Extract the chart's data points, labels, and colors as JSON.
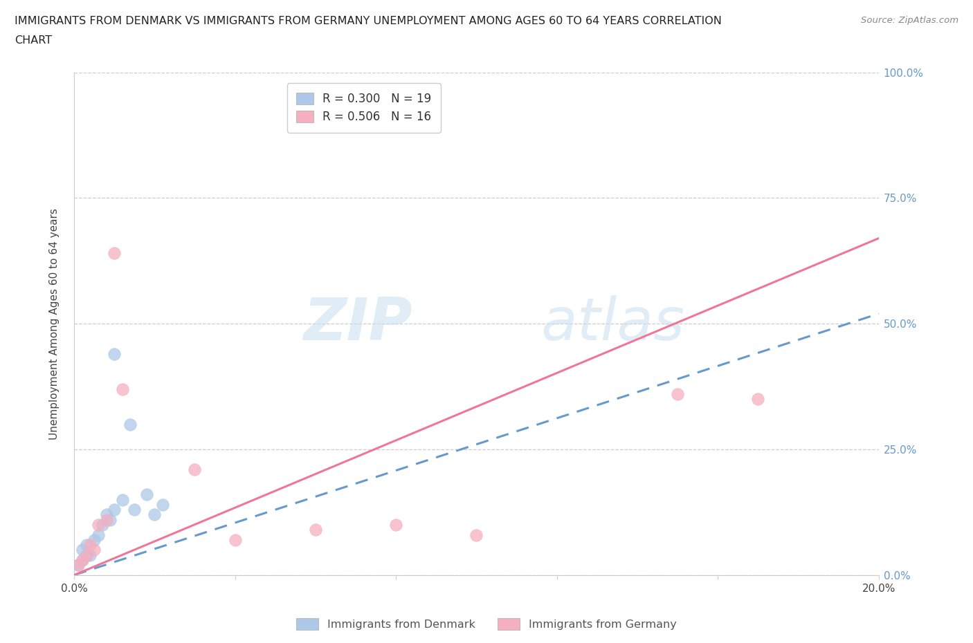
{
  "title_line1": "IMMIGRANTS FROM DENMARK VS IMMIGRANTS FROM GERMANY UNEMPLOYMENT AMONG AGES 60 TO 64 YEARS CORRELATION",
  "title_line2": "CHART",
  "source_text": "Source: ZipAtlas.com",
  "ylabel": "Unemployment Among Ages 60 to 64 years",
  "xlim": [
    0.0,
    0.2
  ],
  "ylim": [
    0.0,
    1.0
  ],
  "denmark_R": 0.3,
  "denmark_N": 19,
  "germany_R": 0.506,
  "germany_N": 16,
  "denmark_color": "#adc8e8",
  "germany_color": "#f5afc0",
  "denmark_line_color": "#6699cc",
  "germany_line_color": "#ee7799",
  "denmark_x": [
    0.001,
    0.002,
    0.002,
    0.003,
    0.003,
    0.004,
    0.005,
    0.006,
    0.007,
    0.008,
    0.009,
    0.01,
    0.01,
    0.012,
    0.014,
    0.015,
    0.018,
    0.02,
    0.022
  ],
  "denmark_y": [
    0.02,
    0.03,
    0.05,
    0.04,
    0.06,
    0.04,
    0.07,
    0.08,
    0.1,
    0.12,
    0.11,
    0.13,
    0.44,
    0.15,
    0.3,
    0.13,
    0.16,
    0.12,
    0.14
  ],
  "germany_x": [
    0.001,
    0.002,
    0.003,
    0.004,
    0.005,
    0.006,
    0.008,
    0.01,
    0.012,
    0.03,
    0.04,
    0.06,
    0.08,
    0.1,
    0.15,
    0.17
  ],
  "germany_y": [
    0.02,
    0.03,
    0.04,
    0.06,
    0.05,
    0.1,
    0.11,
    0.64,
    0.37,
    0.21,
    0.07,
    0.09,
    0.1,
    0.08,
    0.36,
    0.35
  ],
  "denmark_line_x0": 0.0,
  "denmark_line_y0": 0.0,
  "denmark_line_x1": 0.2,
  "denmark_line_y1": 0.52,
  "germany_line_x0": 0.0,
  "germany_line_y0": 0.0,
  "germany_line_x1": 0.2,
  "germany_line_y1": 0.67,
  "watermark_zip": "ZIP",
  "watermark_atlas": "atlas",
  "background_color": "#ffffff",
  "grid_color": "#cccccc",
  "right_axis_color": "#6699cc",
  "legend_R_color": "#3366bb"
}
